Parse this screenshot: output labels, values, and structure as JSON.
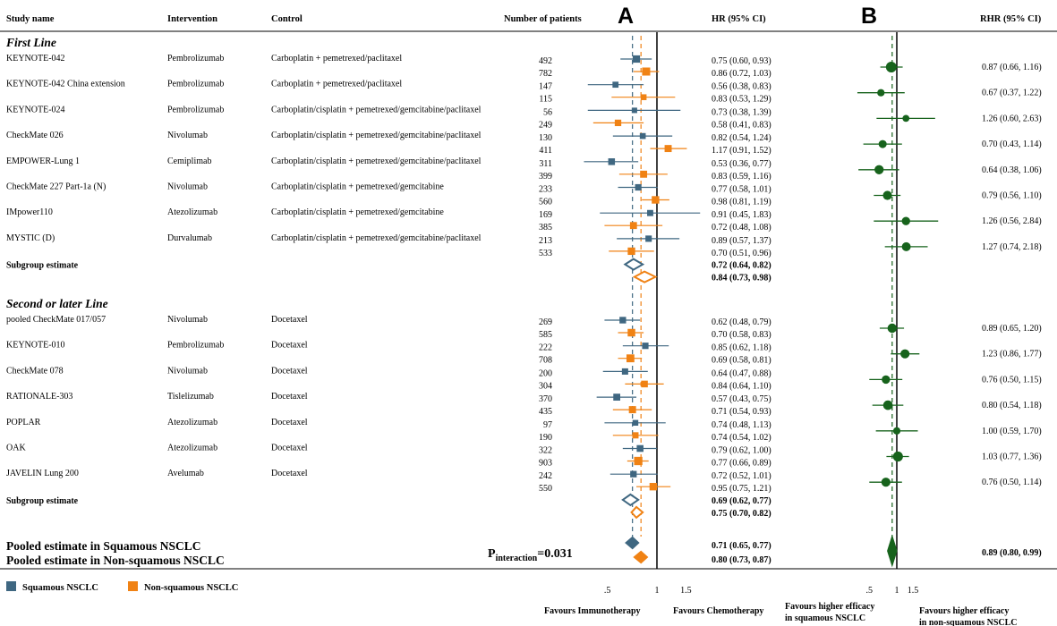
{
  "headers": {
    "study": "Study name",
    "intervention": "Intervention",
    "control": "Control",
    "patients": "Number of patients",
    "hr": "HR (95% CI)",
    "rhr": "RHR (95% CI)",
    "panel_a": "A",
    "panel_b": "B"
  },
  "colors": {
    "squamous": "#3f6781",
    "nonsquamous": "#f08214",
    "rhr": "#17631c"
  },
  "sections": [
    {
      "title": "First Line",
      "studies": [
        {
          "name": "KEYNOTE-042",
          "intervention": "Pembrolizumab",
          "control": "Carboplatin + pemetrexed/paclitaxel",
          "sq": {
            "n": "492",
            "hr": 0.75,
            "lo": 0.6,
            "hi": 0.93,
            "ci": "0.75 (0.60, 0.93)"
          },
          "nsq": {
            "n": "782",
            "hr": 0.86,
            "lo": 0.72,
            "hi": 1.03,
            "ci": "0.86 (0.72, 1.03)"
          },
          "rhr": {
            "hr": 0.87,
            "lo": 0.66,
            "hi": 1.16,
            "ci": "0.87 (0.66, 1.16)"
          }
        },
        {
          "name": "KEYNOTE-042 China extension",
          "intervention": "Pembrolizumab",
          "control": "Carboplatin + pemetrexed/paclitaxel",
          "sq": {
            "n": "147",
            "hr": 0.56,
            "lo": 0.38,
            "hi": 0.83,
            "ci": "0.56 (0.38, 0.83)"
          },
          "nsq": {
            "n": "115",
            "hr": 0.83,
            "lo": 0.53,
            "hi": 1.29,
            "ci": "0.83 (0.53, 1.29)"
          },
          "rhr": {
            "hr": 0.67,
            "lo": 0.37,
            "hi": 1.22,
            "ci": "0.67 (0.37, 1.22)"
          }
        },
        {
          "name": "KEYNOTE-024",
          "intervention": "Pembrolizumab",
          "control": "Carboplatin/cisplatin + pemetrexed/gemcitabine/paclitaxel",
          "sq": {
            "n": "56",
            "hr": 0.73,
            "lo": 0.38,
            "hi": 1.39,
            "ci": "0.73 (0.38, 1.39)"
          },
          "nsq": {
            "n": "249",
            "hr": 0.58,
            "lo": 0.41,
            "hi": 0.83,
            "ci": "0.58 (0.41, 0.83)"
          },
          "rhr": {
            "hr": 1.26,
            "lo": 0.6,
            "hi": 2.63,
            "ci": "1.26 (0.60, 2.63)"
          }
        },
        {
          "name": "CheckMate 026",
          "intervention": "Nivolumab",
          "control": "Carboplatin/cisplatin + pemetrexed/gemcitabine/paclitaxel",
          "sq": {
            "n": "130",
            "hr": 0.82,
            "lo": 0.54,
            "hi": 1.24,
            "ci": "0.82 (0.54, 1.24)"
          },
          "nsq": {
            "n": "411",
            "hr": 1.17,
            "lo": 0.91,
            "hi": 1.52,
            "ci": "1.17 (0.91, 1.52)"
          },
          "rhr": {
            "hr": 0.7,
            "lo": 0.43,
            "hi": 1.14,
            "ci": "0.70 (0.43, 1.14)"
          }
        },
        {
          "name": "EMPOWER-Lung 1",
          "intervention": "Cemiplimab",
          "control": "Carboplatin/cisplatin + pemetrexed/gemcitabine/paclitaxel",
          "sq": {
            "n": "311",
            "hr": 0.53,
            "lo": 0.36,
            "hi": 0.77,
            "ci": "0.53 (0.36, 0.77)"
          },
          "nsq": {
            "n": "399",
            "hr": 0.83,
            "lo": 0.59,
            "hi": 1.16,
            "ci": "0.83 (0.59, 1.16)"
          },
          "rhr": {
            "hr": 0.64,
            "lo": 0.38,
            "hi": 1.06,
            "ci": "0.64 (0.38, 1.06)"
          }
        },
        {
          "name": "CheckMate 227 Part-1a (N)",
          "intervention": "Nivolumab",
          "control": "Carboplatin/cisplatin + pemetrexed/gemcitabine",
          "sq": {
            "n": "233",
            "hr": 0.77,
            "lo": 0.58,
            "hi": 1.01,
            "ci": "0.77 (0.58, 1.01)"
          },
          "nsq": {
            "n": "560",
            "hr": 0.98,
            "lo": 0.81,
            "hi": 1.19,
            "ci": "0.98 (0.81, 1.19)"
          },
          "rhr": {
            "hr": 0.79,
            "lo": 0.56,
            "hi": 1.1,
            "ci": "0.79 (0.56, 1.10)"
          }
        },
        {
          "name": "IMpower110",
          "intervention": "Atezolizumab",
          "control": "Carboplatin/cisplatin + pemetrexed/gemcitabine",
          "sq": {
            "n": "169",
            "hr": 0.91,
            "lo": 0.45,
            "hi": 1.83,
            "ci": "0.91 (0.45, 1.83)"
          },
          "nsq": {
            "n": "385",
            "hr": 0.72,
            "lo": 0.48,
            "hi": 1.08,
            "ci": "0.72 (0.48, 1.08)"
          },
          "rhr": {
            "hr": 1.26,
            "lo": 0.56,
            "hi": 2.84,
            "ci": "1.26 (0.56, 2.84)"
          }
        },
        {
          "name": "MYSTIC (D)",
          "intervention": "Durvalumab",
          "control": "Carboplatin/cisplatin + pemetrexed/gemcitabine/paclitaxel",
          "sq": {
            "n": "213",
            "hr": 0.89,
            "lo": 0.57,
            "hi": 1.37,
            "ci": "0.89 (0.57, 1.37)"
          },
          "nsq": {
            "n": "533",
            "hr": 0.7,
            "lo": 0.51,
            "hi": 0.96,
            "ci": "0.70 (0.51, 0.96)"
          },
          "rhr": {
            "hr": 1.27,
            "lo": 0.74,
            "hi": 2.18,
            "ci": "1.27 (0.74, 2.18)"
          }
        }
      ],
      "subgroup": {
        "label": "Subgroup estimate",
        "sq": {
          "hr": 0.72,
          "lo": 0.64,
          "hi": 0.82,
          "ci": "0.72 (0.64, 0.82)"
        },
        "nsq": {
          "hr": 0.84,
          "lo": 0.73,
          "hi": 0.98,
          "ci": "0.84 (0.73, 0.98)"
        }
      }
    },
    {
      "title": "Second or later Line",
      "studies": [
        {
          "name": "pooled CheckMate 017/057",
          "intervention": "Nivolumab",
          "control": "Docetaxel",
          "sq": {
            "n": "269",
            "hr": 0.62,
            "lo": 0.48,
            "hi": 0.79,
            "ci": "0.62 (0.48, 0.79)"
          },
          "nsq": {
            "n": "585",
            "hr": 0.7,
            "lo": 0.58,
            "hi": 0.83,
            "ci": "0.70 (0.58, 0.83)"
          },
          "rhr": {
            "hr": 0.89,
            "lo": 0.65,
            "hi": 1.2,
            "ci": "0.89 (0.65, 1.20)"
          }
        },
        {
          "name": "KEYNOTE-010",
          "intervention": "Pembrolizumab",
          "control": "Docetaxel",
          "sq": {
            "n": "222",
            "hr": 0.85,
            "lo": 0.62,
            "hi": 1.18,
            "ci": "0.85 (0.62, 1.18)"
          },
          "nsq": {
            "n": "708",
            "hr": 0.69,
            "lo": 0.58,
            "hi": 0.81,
            "ci": "0.69 (0.58, 0.81)"
          },
          "rhr": {
            "hr": 1.23,
            "lo": 0.86,
            "hi": 1.77,
            "ci": "1.23 (0.86, 1.77)"
          }
        },
        {
          "name": "CheckMate 078",
          "intervention": "Nivolumab",
          "control": "Docetaxel",
          "sq": {
            "n": "200",
            "hr": 0.64,
            "lo": 0.47,
            "hi": 0.88,
            "ci": "0.64 (0.47, 0.88)"
          },
          "nsq": {
            "n": "304",
            "hr": 0.84,
            "lo": 0.64,
            "hi": 1.1,
            "ci": "0.84 (0.64, 1.10)"
          },
          "rhr": {
            "hr": 0.76,
            "lo": 0.5,
            "hi": 1.15,
            "ci": "0.76 (0.50, 1.15)"
          }
        },
        {
          "name": "RATIONALE-303",
          "intervention": "Tislelizumab",
          "control": "Docetaxel",
          "sq": {
            "n": "370",
            "hr": 0.57,
            "lo": 0.43,
            "hi": 0.75,
            "ci": "0.57 (0.43, 0.75)"
          },
          "nsq": {
            "n": "435",
            "hr": 0.71,
            "lo": 0.54,
            "hi": 0.93,
            "ci": "0.71 (0.54, 0.93)"
          },
          "rhr": {
            "hr": 0.8,
            "lo": 0.54,
            "hi": 1.18,
            "ci": "0.80 (0.54, 1.18)"
          }
        },
        {
          "name": "POPLAR",
          "intervention": "Atezolizumab",
          "control": "Docetaxel",
          "sq": {
            "n": "97",
            "hr": 0.74,
            "lo": 0.48,
            "hi": 1.13,
            "ci": "0.74 (0.48, 1.13)"
          },
          "nsq": {
            "n": "190",
            "hr": 0.74,
            "lo": 0.54,
            "hi": 1.02,
            "ci": "0.74 (0.54, 1.02)"
          },
          "rhr": {
            "hr": 1.0,
            "lo": 0.59,
            "hi": 1.7,
            "ci": "1.00 (0.59, 1.70)"
          }
        },
        {
          "name": "OAK",
          "intervention": "Atezolizumab",
          "control": "Docetaxel",
          "sq": {
            "n": "322",
            "hr": 0.79,
            "lo": 0.62,
            "hi": 1.0,
            "ci": "0.79 (0.62, 1.00)"
          },
          "nsq": {
            "n": "903",
            "hr": 0.77,
            "lo": 0.66,
            "hi": 0.89,
            "ci": "0.77 (0.66, 0.89)"
          },
          "rhr": {
            "hr": 1.03,
            "lo": 0.77,
            "hi": 1.36,
            "ci": "1.03 (0.77, 1.36)"
          }
        },
        {
          "name": "JAVELIN Lung 200",
          "intervention": "Avelumab",
          "control": "Docetaxel",
          "sq": {
            "n": "242",
            "hr": 0.72,
            "lo": 0.52,
            "hi": 1.01,
            "ci": "0.72 (0.52, 1.01)"
          },
          "nsq": {
            "n": "550",
            "hr": 0.95,
            "lo": 0.75,
            "hi": 1.21,
            "ci": "0.95 (0.75, 1.21)"
          },
          "rhr": {
            "hr": 0.76,
            "lo": 0.5,
            "hi": 1.14,
            "ci": "0.76 (0.50, 1.14)"
          }
        }
      ],
      "subgroup": {
        "label": "Subgroup estimate",
        "sq": {
          "hr": 0.69,
          "lo": 0.62,
          "hi": 0.77,
          "ci": "0.69 (0.62, 0.77)"
        },
        "nsq": {
          "hr": 0.75,
          "lo": 0.7,
          "hi": 0.82,
          "ci": "0.75 (0.70, 0.82)"
        }
      }
    }
  ],
  "pooled": {
    "label_sq": "Pooled estimate in Squamous NSCLC",
    "label_nsq": "Pooled estimate in Non-squamous NSCLC",
    "p_main": "P",
    "p_sub": "interaction",
    "p_value": "=0.031",
    "sq": {
      "hr": 0.71,
      "lo": 0.65,
      "hi": 0.77,
      "ci": "0.71 (0.65, 0.77)"
    },
    "nsq": {
      "hr": 0.8,
      "lo": 0.73,
      "hi": 0.87,
      "ci": "0.80 (0.73, 0.87)"
    },
    "rhr": {
      "hr": 0.89,
      "lo": 0.8,
      "hi": 0.99,
      "ci": "0.89 (0.80, 0.99)"
    }
  },
  "legend": {
    "squamous": "Squamous NSCLC",
    "nonsquamous": "Non-squamous NSCLC"
  },
  "chart_data": [
    {
      "type": "forest",
      "title": "A",
      "xlabel_left": "Favours Immunotherapy",
      "xlabel_right": "Favours Chemotherapy",
      "xscale": "log",
      "xlim": [
        0.4,
        1.85
      ],
      "ticks": [
        {
          "v": 0.5,
          "label": ".5"
        },
        {
          "v": 1,
          "label": "1"
        },
        {
          "v": 1.5,
          "label": "1.5"
        }
      ],
      "reference_line": 1,
      "series": [
        "Squamous NSCLC",
        "Non-squamous NSCLC"
      ]
    },
    {
      "type": "forest",
      "title": "B",
      "xlabel_left": "Favours higher efficacy\nin squamous NSCLC",
      "xlabel_right": "Favours higher efficacy\nin non-squamous NSCLC",
      "xscale": "log",
      "xlim": [
        0.3,
        3.2
      ],
      "ticks": [
        {
          "v": 0.5,
          "label": ".5"
        },
        {
          "v": 1,
          "label": "1"
        },
        {
          "v": 1.5,
          "label": "1.5"
        }
      ],
      "reference_line": 1,
      "series": [
        "RHR"
      ]
    }
  ]
}
